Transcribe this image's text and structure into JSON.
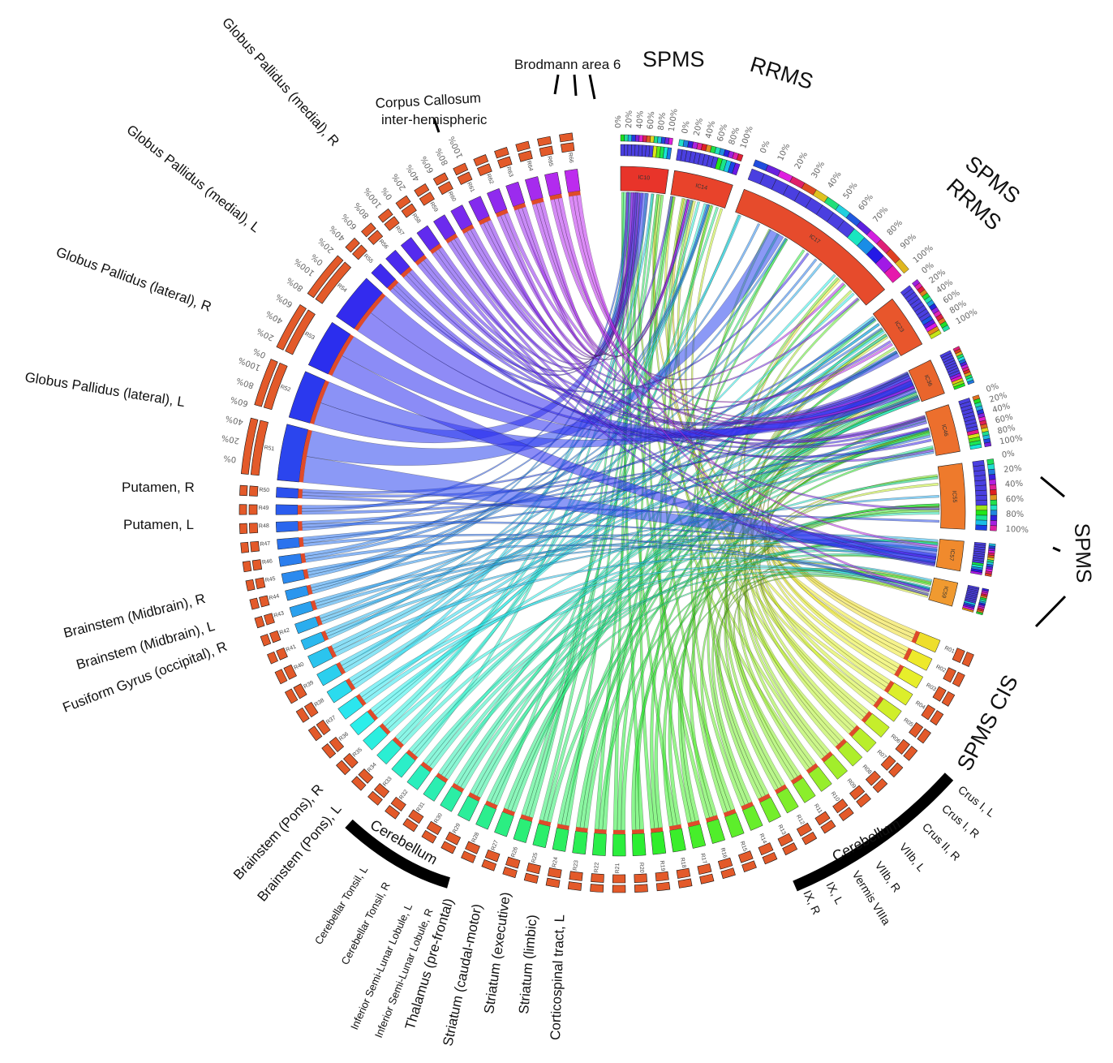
{
  "ring_segments": {
    "right": [
      "IC10",
      "IC14",
      "IC17",
      "IC23",
      "IC36",
      "IC46",
      "IC55",
      "IC57",
      "IC59"
    ],
    "right_colors": [
      "#e8342a",
      "#e8432b",
      "#e64b2c",
      "#e8562c",
      "#e9652c",
      "#ec6f2d",
      "#ee7a2c",
      "#f08a2d",
      "#f09a30"
    ],
    "left": [
      "R01",
      "R02",
      "R03",
      "R04",
      "R05",
      "R06",
      "R07",
      "R08",
      "R09",
      "R10",
      "R11",
      "R12",
      "R13",
      "R14",
      "R15",
      "R16",
      "R17",
      "R18",
      "R19",
      "R20",
      "R21",
      "R22",
      "R23",
      "R24",
      "R25",
      "R26",
      "R27",
      "R28",
      "R29",
      "R30",
      "R31",
      "R32",
      "R33",
      "R34",
      "R35",
      "R36",
      "R37",
      "R38",
      "R39",
      "R40",
      "R41",
      "R42",
      "R43",
      "R44",
      "R45",
      "R46",
      "R47",
      "R48",
      "R49",
      "R50",
      "R51",
      "R52",
      "R53",
      "R54",
      "R55",
      "R56",
      "R57",
      "R58",
      "R59",
      "R60",
      "R61",
      "R62",
      "R63",
      "R64",
      "R65",
      "R66"
    ]
  },
  "percent_ticks_5": [
    "0%",
    "20%",
    "40%",
    "60%",
    "80%",
    "100%"
  ],
  "percent_ticks_10": [
    "0%",
    "10%",
    "20%",
    "30%",
    "40%",
    "50%",
    "60%",
    "70%",
    "80%",
    "90%",
    "100%"
  ],
  "labels": {
    "globus_medial_r": "Globus Pallidus (medial), R",
    "globus_medial_l": "Globus Pallidus (medial), L",
    "globus_lateral_r": "Globus Pallidus (lateral), R",
    "globus_lateral_l": "Globus Pallidus (lateral), L",
    "putamen_r": "Putamen, R",
    "putamen_l": "Putamen, L",
    "midbrain_r": "Brainstem (Midbrain), R",
    "midbrain_l": "Brainstem (Midbrain), L",
    "fusiform": "Fusiform Gyrus (occipital), R",
    "pons_r": "Brainstem (Pons), R",
    "pons_l": "Brainstem (Pons), L",
    "cerebellum_left": "Cerebellum",
    "cerebellar_tonsil_l": "Cerebellar Tonsil, L",
    "cerebellar_tonsil_r": "Cerebellar Tonsil, R",
    "inf_semilunar_l": "Inferior Semi-Lunar Lobule, L",
    "inf_semilunar_r": "Inferior Semi-Lunar Lobule, R",
    "thalamus": "Thalamus (pre-frontal)",
    "striatum_caudal": "Striatum (caudal-motor)",
    "striatum_exec": "Striatum (executive)",
    "striatum_limbic": "Striatum (limbic)",
    "corticospinal": "Corticospinal tract, L",
    "corpus_callosum_1": "Corpus Callosum",
    "corpus_callosum_2": "inter-hemispheric",
    "brodmann": "Brodmann area 6",
    "spms_top": "SPMS",
    "rrms_top": "RRMS",
    "spms_right": "SPMS",
    "rrms_right": "RRMS",
    "spms_mid": "SPMS",
    "spms_cis": "SPMS CIS",
    "cerebellum_right": "Cerebellum",
    "crus_i_l": "Crus I, L",
    "crus_i_r": "Crus I, R",
    "crus_ii_r": "Crus II, R",
    "viib_l": "VIIb, L",
    "viib_r": "VIIb, R",
    "vermis": "Vermis VIIIa",
    "ix_l": "IX, L",
    "ix_r": "IX, R"
  }
}
